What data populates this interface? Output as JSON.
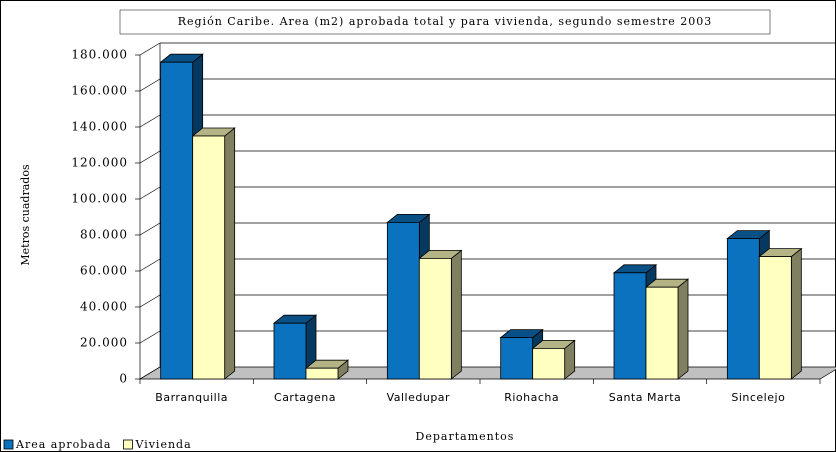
{
  "chart_data": {
    "type": "bar3d",
    "title": "Región Caribe. Area (m2) aprobada total y para vivienda, segundo semestre 2003",
    "x_label": "Departamentos",
    "y_label": "Metros cuadrados",
    "categories": [
      "Barranquilla",
      "Cartagena",
      "Valledupar",
      "Riohacha",
      "Santa Marta",
      "Sincelejo"
    ],
    "series": [
      {
        "name": "Area aprobada",
        "color": "#0b72bf",
        "values": [
          176000,
          31000,
          87000,
          23000,
          59000,
          78000
        ]
      },
      {
        "name": "Vivienda",
        "color": "#ffffc0",
        "values": [
          135000,
          6000,
          67000,
          17000,
          51000,
          68000
        ]
      }
    ],
    "ylim": [
      0,
      180000
    ],
    "yticks": [
      0,
      {
        "value": 20000,
        "label": "20.000"
      },
      {
        "value": 40000,
        "label": "40.000"
      },
      {
        "value": 60000,
        "label": "60.000"
      },
      {
        "value": 80000,
        "label": "80.000"
      },
      {
        "value": 100000,
        "label": "100.000"
      },
      {
        "value": 120000,
        "label": "120.000"
      },
      {
        "value": 140000,
        "label": "140.000"
      },
      {
        "value": 160000,
        "label": "160.000"
      },
      {
        "value": 180000,
        "label": "180.000"
      }
    ],
    "grid": true,
    "legend": "bottom-left"
  }
}
